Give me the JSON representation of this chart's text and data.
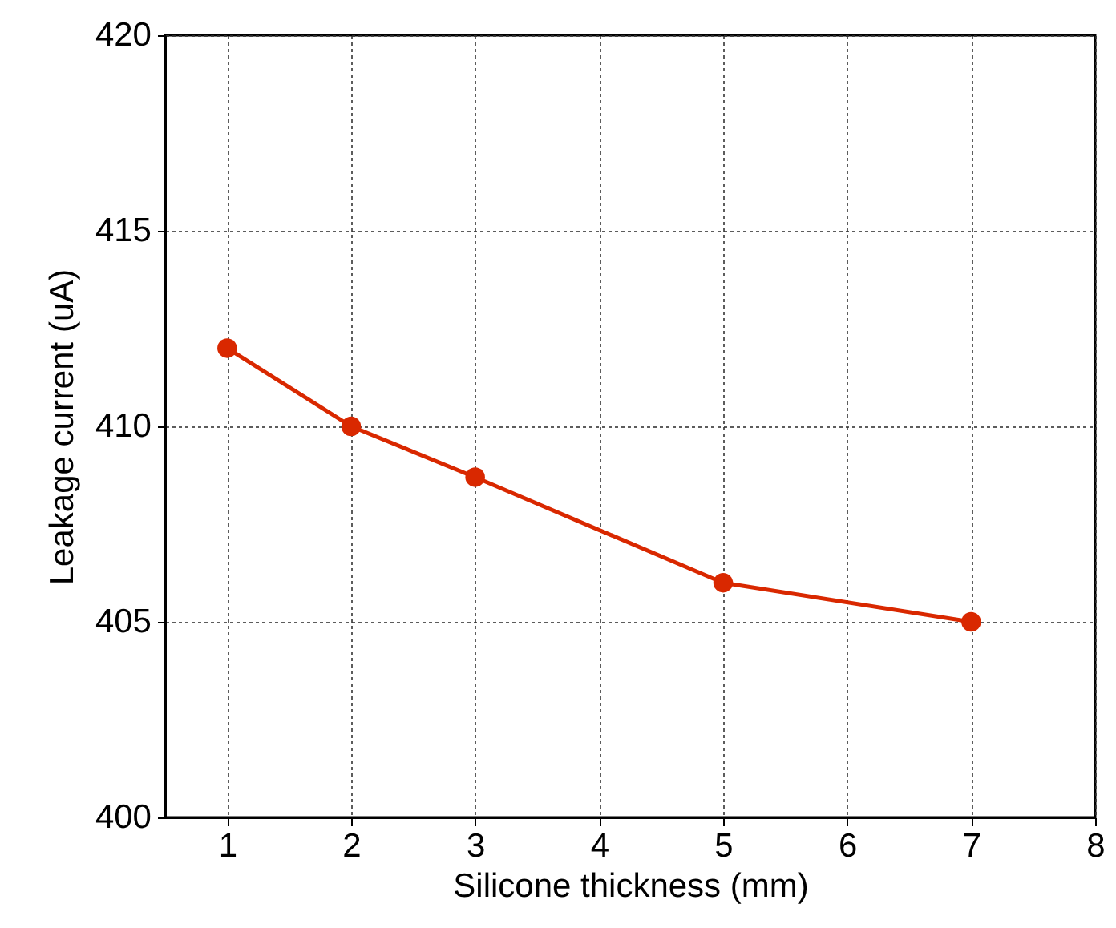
{
  "chart_data": {
    "type": "line",
    "xlabel": "Silicone thickness (mm)",
    "ylabel": "Leakage current (uA)",
    "x": [
      1,
      2,
      3,
      5,
      7
    ],
    "series": [
      {
        "color": "#d92800",
        "values": [
          412,
          410,
          408.7,
          406,
          405
        ]
      }
    ],
    "xlim": [
      0.5,
      8
    ],
    "xticks": [
      1,
      2,
      3,
      4,
      5,
      6,
      7,
      8
    ],
    "ylim": [
      400,
      420
    ],
    "yticks": [
      400,
      405,
      410,
      415,
      420
    ],
    "grid": true,
    "marker": "circle",
    "line_style": "solid"
  }
}
